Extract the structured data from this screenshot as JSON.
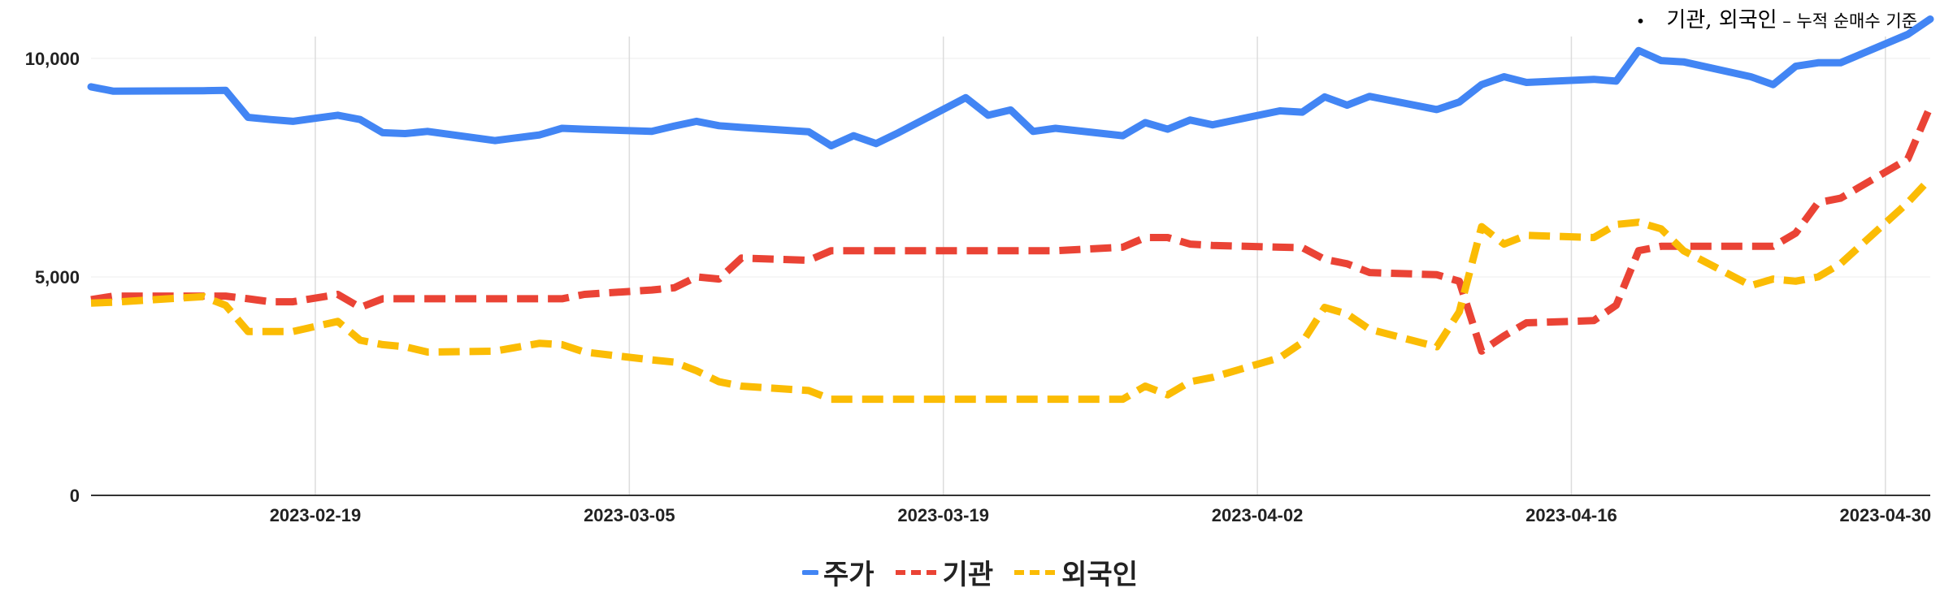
{
  "note": {
    "bullet": "•",
    "main": "기관, 외국인",
    "rest": " – 누적 순매수 기준"
  },
  "chart_data": {
    "type": "line",
    "ylim": [
      0,
      10500
    ],
    "y_ticks": [
      {
        "value": 0,
        "label": "0"
      },
      {
        "value": 5000,
        "label": "5,000"
      },
      {
        "value": 10000,
        "label": "10,000"
      }
    ],
    "x_ticks": [
      "2023-02-19",
      "2023-03-05",
      "2023-03-19",
      "2023-04-02",
      "2023-04-16",
      "2023-04-30"
    ],
    "x_range": [
      "2023-02-09",
      "2023-05-02"
    ],
    "series": [
      {
        "name": "주가",
        "color": "#4285f4",
        "dash": "solid",
        "points": [
          [
            "2023-02-09",
            9350
          ],
          [
            "2023-02-10",
            9250
          ],
          [
            "2023-02-14",
            9260
          ],
          [
            "2023-02-15",
            9270
          ],
          [
            "2023-02-16",
            8650
          ],
          [
            "2023-02-17",
            8600
          ],
          [
            "2023-02-18",
            8560
          ],
          [
            "2023-02-20",
            8700
          ],
          [
            "2023-02-21",
            8600
          ],
          [
            "2023-02-22",
            8300
          ],
          [
            "2023-02-23",
            8280
          ],
          [
            "2023-02-24",
            8330
          ],
          [
            "2023-02-27",
            8120
          ],
          [
            "2023-03-01",
            8250
          ],
          [
            "2023-03-02",
            8400
          ],
          [
            "2023-03-03",
            8380
          ],
          [
            "2023-03-06",
            8330
          ],
          [
            "2023-03-07",
            8450
          ],
          [
            "2023-03-08",
            8560
          ],
          [
            "2023-03-09",
            8460
          ],
          [
            "2023-03-10",
            8420
          ],
          [
            "2023-03-13",
            8320
          ],
          [
            "2023-03-14",
            8000
          ],
          [
            "2023-03-15",
            8230
          ],
          [
            "2023-03-16",
            8050
          ],
          [
            "2023-03-17",
            8300
          ],
          [
            "2023-03-20",
            9100
          ],
          [
            "2023-03-21",
            8700
          ],
          [
            "2023-03-22",
            8820
          ],
          [
            "2023-03-23",
            8330
          ],
          [
            "2023-03-24",
            8400
          ],
          [
            "2023-03-27",
            8230
          ],
          [
            "2023-03-28",
            8530
          ],
          [
            "2023-03-29",
            8380
          ],
          [
            "2023-03-30",
            8590
          ],
          [
            "2023-03-31",
            8480
          ],
          [
            "2023-04-03",
            8800
          ],
          [
            "2023-04-04",
            8770
          ],
          [
            "2023-04-05",
            9120
          ],
          [
            "2023-04-06",
            8930
          ],
          [
            "2023-04-07",
            9130
          ],
          [
            "2023-04-10",
            8830
          ],
          [
            "2023-04-11",
            9000
          ],
          [
            "2023-04-12",
            9400
          ],
          [
            "2023-04-13",
            9580
          ],
          [
            "2023-04-14",
            9450
          ],
          [
            "2023-04-17",
            9520
          ],
          [
            "2023-04-18",
            9480
          ],
          [
            "2023-04-19",
            10180
          ],
          [
            "2023-04-20",
            9950
          ],
          [
            "2023-04-21",
            9920
          ],
          [
            "2023-04-24",
            9580
          ],
          [
            "2023-04-25",
            9400
          ],
          [
            "2023-04-26",
            9820
          ],
          [
            "2023-04-27",
            9900
          ],
          [
            "2023-04-28",
            9900
          ],
          [
            "2023-05-01",
            10550
          ],
          [
            "2023-05-02",
            10900
          ]
        ]
      },
      {
        "name": "기관",
        "color": "#ea4335",
        "dash": "dashed",
        "points": [
          [
            "2023-02-09",
            4480
          ],
          [
            "2023-02-10",
            4560
          ],
          [
            "2023-02-14",
            4560
          ],
          [
            "2023-02-15",
            4560
          ],
          [
            "2023-02-16",
            4500
          ],
          [
            "2023-02-17",
            4430
          ],
          [
            "2023-02-18",
            4430
          ],
          [
            "2023-02-20",
            4600
          ],
          [
            "2023-02-21",
            4300
          ],
          [
            "2023-02-22",
            4500
          ],
          [
            "2023-02-23",
            4500
          ],
          [
            "2023-02-24",
            4500
          ],
          [
            "2023-02-27",
            4500
          ],
          [
            "2023-03-01",
            4500
          ],
          [
            "2023-03-02",
            4500
          ],
          [
            "2023-03-03",
            4600
          ],
          [
            "2023-03-06",
            4700
          ],
          [
            "2023-03-07",
            4750
          ],
          [
            "2023-03-08",
            5000
          ],
          [
            "2023-03-09",
            4950
          ],
          [
            "2023-03-10",
            5430
          ],
          [
            "2023-03-13",
            5380
          ],
          [
            "2023-03-14",
            5600
          ],
          [
            "2023-03-15",
            5600
          ],
          [
            "2023-03-16",
            5600
          ],
          [
            "2023-03-17",
            5600
          ],
          [
            "2023-03-20",
            5600
          ],
          [
            "2023-03-21",
            5600
          ],
          [
            "2023-03-22",
            5600
          ],
          [
            "2023-03-23",
            5600
          ],
          [
            "2023-03-24",
            5600
          ],
          [
            "2023-03-27",
            5680
          ],
          [
            "2023-03-28",
            5900
          ],
          [
            "2023-03-29",
            5900
          ],
          [
            "2023-03-30",
            5750
          ],
          [
            "2023-03-31",
            5720
          ],
          [
            "2023-04-03",
            5680
          ],
          [
            "2023-04-04",
            5670
          ],
          [
            "2023-04-05",
            5400
          ],
          [
            "2023-04-06",
            5300
          ],
          [
            "2023-04-07",
            5100
          ],
          [
            "2023-04-10",
            5050
          ],
          [
            "2023-04-11",
            4900
          ],
          [
            "2023-04-12",
            3300
          ],
          [
            "2023-04-13",
            3650
          ],
          [
            "2023-04-14",
            3950
          ],
          [
            "2023-04-17",
            4000
          ],
          [
            "2023-04-18",
            4350
          ],
          [
            "2023-04-19",
            5600
          ],
          [
            "2023-04-20",
            5700
          ],
          [
            "2023-04-21",
            5700
          ],
          [
            "2023-04-24",
            5700
          ],
          [
            "2023-04-25",
            5700
          ],
          [
            "2023-04-26",
            6000
          ],
          [
            "2023-04-27",
            6700
          ],
          [
            "2023-04-28",
            6800
          ],
          [
            "2023-05-01",
            7700
          ],
          [
            "2023-05-02",
            8900
          ]
        ]
      },
      {
        "name": "외국인",
        "color": "#fbbc04",
        "dash": "dashed",
        "points": [
          [
            "2023-02-09",
            4400
          ],
          [
            "2023-02-10",
            4420
          ],
          [
            "2023-02-14",
            4550
          ],
          [
            "2023-02-15",
            4350
          ],
          [
            "2023-02-16",
            3750
          ],
          [
            "2023-02-17",
            3750
          ],
          [
            "2023-02-18",
            3750
          ],
          [
            "2023-02-20",
            3980
          ],
          [
            "2023-02-21",
            3550
          ],
          [
            "2023-02-22",
            3450
          ],
          [
            "2023-02-23",
            3400
          ],
          [
            "2023-02-24",
            3280
          ],
          [
            "2023-02-27",
            3300
          ],
          [
            "2023-03-01",
            3480
          ],
          [
            "2023-03-02",
            3450
          ],
          [
            "2023-03-03",
            3280
          ],
          [
            "2023-03-06",
            3100
          ],
          [
            "2023-03-07",
            3050
          ],
          [
            "2023-03-08",
            2850
          ],
          [
            "2023-03-09",
            2600
          ],
          [
            "2023-03-10",
            2500
          ],
          [
            "2023-03-13",
            2400
          ],
          [
            "2023-03-14",
            2200
          ],
          [
            "2023-03-15",
            2200
          ],
          [
            "2023-03-16",
            2200
          ],
          [
            "2023-03-17",
            2200
          ],
          [
            "2023-03-20",
            2200
          ],
          [
            "2023-03-21",
            2200
          ],
          [
            "2023-03-22",
            2200
          ],
          [
            "2023-03-23",
            2200
          ],
          [
            "2023-03-24",
            2200
          ],
          [
            "2023-03-27",
            2200
          ],
          [
            "2023-03-28",
            2500
          ],
          [
            "2023-03-29",
            2300
          ],
          [
            "2023-03-30",
            2600
          ],
          [
            "2023-03-31",
            2700
          ],
          [
            "2023-04-03",
            3150
          ],
          [
            "2023-04-04",
            3500
          ],
          [
            "2023-04-05",
            4300
          ],
          [
            "2023-04-06",
            4150
          ],
          [
            "2023-04-07",
            3800
          ],
          [
            "2023-04-10",
            3400
          ],
          [
            "2023-04-11",
            4200
          ],
          [
            "2023-04-12",
            6150
          ],
          [
            "2023-04-13",
            5750
          ],
          [
            "2023-04-14",
            5950
          ],
          [
            "2023-04-17",
            5900
          ],
          [
            "2023-04-18",
            6200
          ],
          [
            "2023-04-19",
            6250
          ],
          [
            "2023-04-20",
            6100
          ],
          [
            "2023-04-21",
            5600
          ],
          [
            "2023-04-24",
            4800
          ],
          [
            "2023-04-25",
            4950
          ],
          [
            "2023-04-26",
            4900
          ],
          [
            "2023-04-27",
            5000
          ],
          [
            "2023-04-28",
            5300
          ],
          [
            "2023-05-01",
            6700
          ],
          [
            "2023-05-02",
            7250
          ]
        ]
      }
    ],
    "grid": true,
    "legend_position": "bottom"
  }
}
